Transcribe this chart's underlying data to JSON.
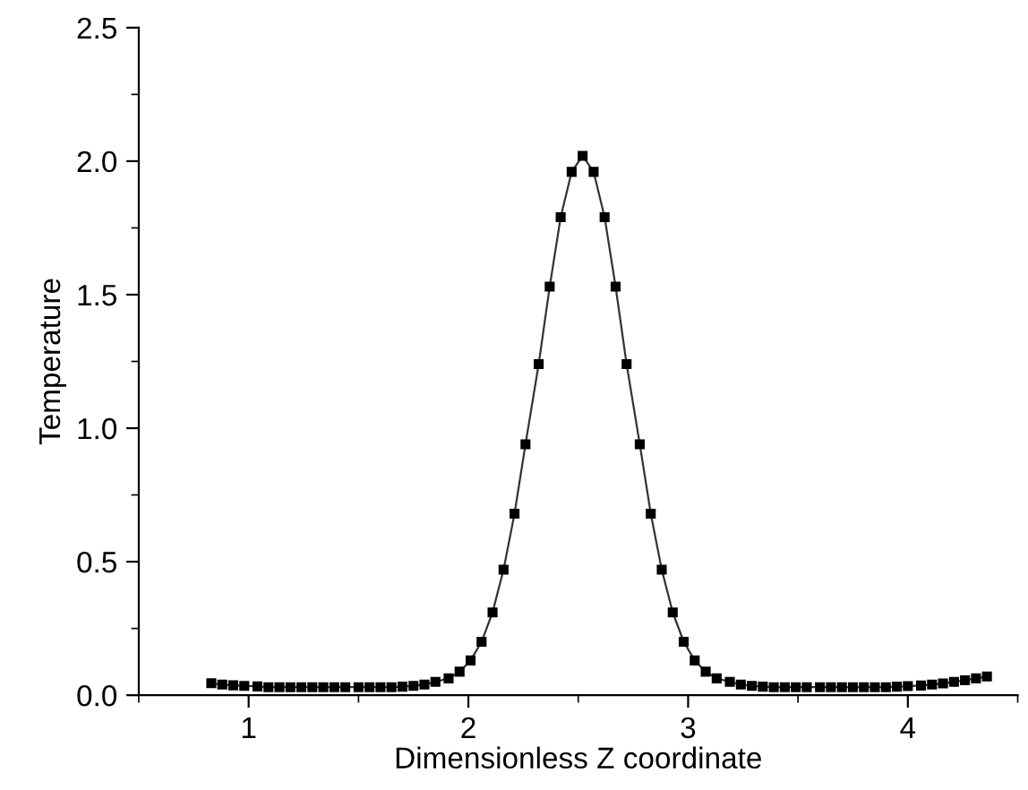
{
  "chart_data": {
    "type": "line",
    "xlabel": "Dimensionless Z coordinate",
    "ylabel": "Temperature",
    "xlim": [
      0.5,
      4.5
    ],
    "ylim": [
      0,
      2.5
    ],
    "xticks": [
      {
        "value": 0.5,
        "label": null
      },
      1,
      {
        "value": 1.5,
        "label": null
      },
      2,
      {
        "value": 2.5,
        "label": null
      },
      3,
      {
        "value": 3.5,
        "label": null
      },
      4,
      {
        "value": 4.5,
        "label": null
      }
    ],
    "yticks": [
      {
        "value": 0,
        "label": "0.0"
      },
      {
        "value": 0.25,
        "label": null
      },
      {
        "value": 0.5,
        "label": "0.5"
      },
      {
        "value": 0.75,
        "label": null
      },
      {
        "value": 1.0,
        "label": "1.0"
      },
      {
        "value": 1.25,
        "label": null
      },
      {
        "value": 1.5,
        "label": "1.5"
      },
      {
        "value": 1.75,
        "label": null
      },
      {
        "value": 2.0,
        "label": "2.0"
      },
      {
        "value": 2.25,
        "label": null
      },
      {
        "value": 2.5,
        "label": "2.5"
      }
    ],
    "grid": false,
    "legend": false,
    "marker": "square",
    "line_style": "solid",
    "x": [
      0.83,
      0.88,
      0.93,
      0.98,
      1.04,
      1.09,
      1.14,
      1.19,
      1.24,
      1.29,
      1.34,
      1.39,
      1.44,
      1.5,
      1.55,
      1.6,
      1.65,
      1.7,
      1.75,
      1.8,
      1.85,
      1.91,
      1.96,
      2.01,
      2.06,
      2.11,
      2.16,
      2.21,
      2.26,
      2.32,
      2.37,
      2.42,
      2.47,
      2.52,
      2.57,
      2.62,
      2.67,
      2.72,
      2.78,
      2.83,
      2.88,
      2.93,
      2.98,
      3.03,
      3.08,
      3.13,
      3.19,
      3.24,
      3.29,
      3.34,
      3.39,
      3.44,
      3.49,
      3.54,
      3.6,
      3.65,
      3.7,
      3.75,
      3.8,
      3.85,
      3.9,
      3.95,
      4.0,
      4.06,
      4.11,
      4.16,
      4.21,
      4.26,
      4.31,
      4.36
    ],
    "series": [
      {
        "color": "#000000",
        "values": [
          0.045,
          0.04,
          0.037,
          0.035,
          0.033,
          0.03,
          0.03,
          0.03,
          0.03,
          0.03,
          0.03,
          0.03,
          0.03,
          0.03,
          0.03,
          0.03,
          0.03,
          0.032,
          0.035,
          0.04,
          0.05,
          0.063,
          0.088,
          0.13,
          0.2,
          0.31,
          0.47,
          0.68,
          0.94,
          1.24,
          1.53,
          1.79,
          1.96,
          2.02,
          1.96,
          1.79,
          1.53,
          1.24,
          0.94,
          0.68,
          0.47,
          0.31,
          0.2,
          0.13,
          0.088,
          0.063,
          0.05,
          0.04,
          0.035,
          0.032,
          0.03,
          0.03,
          0.03,
          0.03,
          0.03,
          0.03,
          0.03,
          0.03,
          0.03,
          0.03,
          0.03,
          0.032,
          0.034,
          0.036,
          0.04,
          0.044,
          0.05,
          0.056,
          0.063,
          0.07
        ]
      }
    ]
  }
}
